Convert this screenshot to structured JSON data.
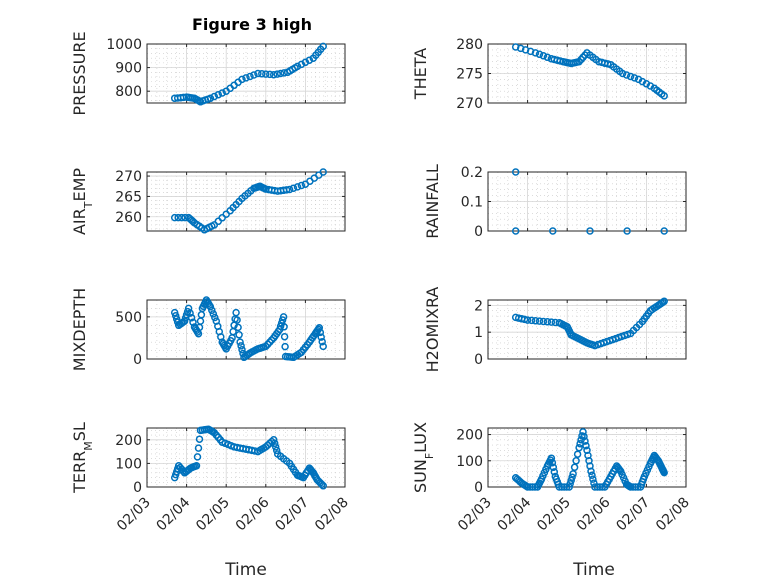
{
  "figure": {
    "title": "Figure 3 high",
    "xlabel": "Time"
  },
  "colors": {
    "series": "#0072BD",
    "axis": "#262626"
  },
  "chart_data": [
    {
      "type": "scatter",
      "ylabel": "PRESSURE",
      "ylim": [
        750,
        1000
      ],
      "yticks": [
        "800",
        "900",
        "1000"
      ],
      "ytick_values": [
        800,
        900,
        1000
      ],
      "xlim": [
        "02/03",
        "02/08"
      ],
      "xticks": [
        "02/03",
        "02/04",
        "02/05",
        "02/06",
        "02/07",
        "02/08"
      ],
      "grid": true,
      "marker": "circle",
      "anchors": [
        [
          3.7,
          770
        ],
        [
          4.0,
          775
        ],
        [
          4.2,
          770
        ],
        [
          4.35,
          755
        ],
        [
          4.6,
          770
        ],
        [
          5.0,
          800
        ],
        [
          5.4,
          850
        ],
        [
          5.8,
          875
        ],
        [
          6.2,
          870
        ],
        [
          6.55,
          880
        ],
        [
          6.8,
          905
        ],
        [
          7.2,
          940
        ],
        [
          7.45,
          990
        ]
      ]
    },
    {
      "type": "scatter",
      "ylabel": "THETA",
      "ylim": [
        270,
        280
      ],
      "yticks": [
        "270",
        "275",
        "280"
      ],
      "ytick_values": [
        270,
        275,
        280
      ],
      "xlim": [
        "02/03",
        "02/08"
      ],
      "xticks": [
        "02/03",
        "02/04",
        "02/05",
        "02/06",
        "02/07",
        "02/08"
      ],
      "grid": true,
      "marker": "circle",
      "anchors": [
        [
          3.7,
          279.5
        ],
        [
          4.2,
          278.5
        ],
        [
          4.6,
          277.5
        ],
        [
          4.9,
          277.0
        ],
        [
          5.1,
          276.7
        ],
        [
          5.3,
          277.0
        ],
        [
          5.5,
          278.5
        ],
        [
          5.8,
          277.0
        ],
        [
          6.1,
          276.5
        ],
        [
          6.4,
          275.0
        ],
        [
          6.8,
          274.0
        ],
        [
          7.2,
          272.5
        ],
        [
          7.45,
          271.2
        ]
      ]
    },
    {
      "type": "scatter",
      "ylabel": "AIR_TEMP",
      "ylim": [
        256.5,
        271
      ],
      "yticks": [
        "260",
        "265",
        "270"
      ],
      "ytick_values": [
        260,
        265,
        270
      ],
      "xlim": [
        "02/03",
        "02/08"
      ],
      "xticks": [
        "02/03",
        "02/04",
        "02/05",
        "02/06",
        "02/07",
        "02/08"
      ],
      "grid": true,
      "marker": "circle",
      "anchors": [
        [
          3.7,
          259.8
        ],
        [
          4.05,
          259.8
        ],
        [
          4.2,
          258.5
        ],
        [
          4.45,
          256.8
        ],
        [
          4.7,
          258.0
        ],
        [
          5.1,
          261.5
        ],
        [
          5.4,
          264.5
        ],
        [
          5.7,
          267.0
        ],
        [
          5.85,
          267.5
        ],
        [
          6.0,
          266.8
        ],
        [
          6.3,
          266.3
        ],
        [
          6.6,
          266.7
        ],
        [
          7.0,
          268.0
        ],
        [
          7.45,
          271.0
        ]
      ]
    },
    {
      "type": "scatter",
      "ylabel": "RAINFALL",
      "ylim": [
        0,
        0.2
      ],
      "yticks": [
        "0",
        "0.1",
        "0.2"
      ],
      "ytick_values": [
        0,
        0.1,
        0.2
      ],
      "xlim": [
        "02/03",
        "02/08"
      ],
      "xticks": [
        "02/03",
        "02/04",
        "02/05",
        "02/06",
        "02/07",
        "02/08"
      ],
      "grid": true,
      "marker": "circle",
      "anchors": [
        [
          3.7,
          0
        ],
        [
          7.45,
          0
        ]
      ],
      "extra_points": [
        [
          3.7,
          0.2
        ]
      ]
    },
    {
      "type": "scatter",
      "ylabel": "MIXDEPTH",
      "ylim": [
        0,
        700
      ],
      "yticks": [
        "0",
        "500"
      ],
      "ytick_values": [
        0,
        500
      ],
      "xlim": [
        "02/03",
        "02/08"
      ],
      "xticks": [
        "02/03",
        "02/04",
        "02/05",
        "02/06",
        "02/07",
        "02/08"
      ],
      "grid": true,
      "marker": "circle",
      "anchors": [
        [
          3.7,
          550
        ],
        [
          3.8,
          400
        ],
        [
          3.95,
          450
        ],
        [
          4.05,
          600
        ],
        [
          4.2,
          380
        ],
        [
          4.3,
          300
        ],
        [
          4.4,
          600
        ],
        [
          4.5,
          700
        ],
        [
          4.6,
          620
        ],
        [
          4.75,
          450
        ],
        [
          4.9,
          200
        ],
        [
          5.0,
          120
        ],
        [
          5.15,
          250
        ],
        [
          5.25,
          550
        ],
        [
          5.35,
          200
        ],
        [
          5.45,
          20
        ],
        [
          5.6,
          70
        ],
        [
          5.8,
          120
        ],
        [
          6.0,
          150
        ],
        [
          6.2,
          250
        ],
        [
          6.35,
          350
        ],
        [
          6.45,
          500
        ],
        [
          6.5,
          30
        ],
        [
          6.7,
          20
        ],
        [
          6.9,
          80
        ],
        [
          7.1,
          200
        ],
        [
          7.25,
          300
        ],
        [
          7.35,
          370
        ],
        [
          7.45,
          150
        ]
      ]
    },
    {
      "type": "scatter",
      "ylabel": "H2OMIXRA",
      "ylim": [
        0,
        2.2
      ],
      "yticks": [
        "0",
        "1",
        "2"
      ],
      "ytick_values": [
        0,
        1,
        2
      ],
      "xlim": [
        "02/03",
        "02/08"
      ],
      "xticks": [
        "02/03",
        "02/04",
        "02/05",
        "02/06",
        "02/07",
        "02/08"
      ],
      "grid": true,
      "marker": "circle",
      "anchors": [
        [
          3.7,
          1.55
        ],
        [
          4.0,
          1.45
        ],
        [
          4.4,
          1.4
        ],
        [
          4.8,
          1.35
        ],
        [
          5.0,
          1.2
        ],
        [
          5.1,
          0.9
        ],
        [
          5.3,
          0.75
        ],
        [
          5.5,
          0.6
        ],
        [
          5.7,
          0.5
        ],
        [
          6.0,
          0.65
        ],
        [
          6.3,
          0.8
        ],
        [
          6.6,
          0.95
        ],
        [
          6.9,
          1.4
        ],
        [
          7.1,
          1.8
        ],
        [
          7.3,
          2.0
        ],
        [
          7.45,
          2.15
        ]
      ]
    },
    {
      "type": "scatter",
      "ylabel": "TERR_MSL",
      "ylim": [
        0,
        250
      ],
      "yticks": [
        "0",
        "100",
        "200"
      ],
      "ytick_values": [
        0,
        100,
        200
      ],
      "xlim": [
        "02/03",
        "02/08"
      ],
      "xticks": [
        "02/03",
        "02/04",
        "02/05",
        "02/06",
        "02/07",
        "02/08"
      ],
      "grid": true,
      "marker": "circle",
      "anchors": [
        [
          3.7,
          40
        ],
        [
          3.8,
          90
        ],
        [
          3.95,
          60
        ],
        [
          4.1,
          80
        ],
        [
          4.25,
          90
        ],
        [
          4.35,
          240
        ],
        [
          4.55,
          245
        ],
        [
          4.7,
          230
        ],
        [
          4.9,
          190
        ],
        [
          5.2,
          170
        ],
        [
          5.5,
          160
        ],
        [
          5.8,
          150
        ],
        [
          6.0,
          170
        ],
        [
          6.2,
          200
        ],
        [
          6.3,
          140
        ],
        [
          6.6,
          100
        ],
        [
          6.8,
          50
        ],
        [
          6.95,
          40
        ],
        [
          7.1,
          80
        ],
        [
          7.2,
          60
        ],
        [
          7.3,
          30
        ],
        [
          7.45,
          5
        ]
      ]
    },
    {
      "type": "scatter",
      "ylabel": "SUN_FLUX",
      "ylim": [
        0,
        225
      ],
      "yticks": [
        "0",
        "100",
        "200"
      ],
      "ytick_values": [
        0,
        100,
        200
      ],
      "xlim": [
        "02/03",
        "02/08"
      ],
      "xticks": [
        "02/03",
        "02/04",
        "02/05",
        "02/06",
        "02/07",
        "02/08"
      ],
      "grid": true,
      "marker": "circle",
      "anchors": [
        [
          3.7,
          35
        ],
        [
          3.85,
          15
        ],
        [
          4.0,
          0
        ],
        [
          4.25,
          0
        ],
        [
          4.35,
          30
        ],
        [
          4.5,
          80
        ],
        [
          4.6,
          110
        ],
        [
          4.7,
          40
        ],
        [
          4.8,
          0
        ],
        [
          5.05,
          0
        ],
        [
          5.15,
          50
        ],
        [
          5.3,
          150
        ],
        [
          5.4,
          210
        ],
        [
          5.5,
          140
        ],
        [
          5.6,
          60
        ],
        [
          5.7,
          0
        ],
        [
          5.95,
          0
        ],
        [
          6.1,
          40
        ],
        [
          6.25,
          80
        ],
        [
          6.35,
          60
        ],
        [
          6.5,
          10
        ],
        [
          6.6,
          0
        ],
        [
          6.85,
          0
        ],
        [
          6.95,
          40
        ],
        [
          7.1,
          90
        ],
        [
          7.2,
          120
        ],
        [
          7.3,
          100
        ],
        [
          7.4,
          70
        ],
        [
          7.45,
          55
        ]
      ]
    }
  ]
}
